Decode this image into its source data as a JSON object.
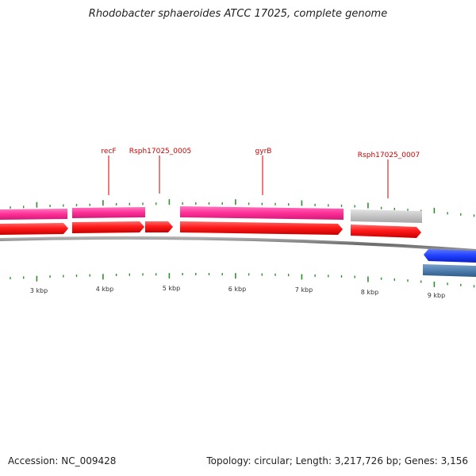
{
  "title": "Rhodobacter sphaeroides ATCC 17025, complete genome",
  "accession": "Accession: NC_009428",
  "summary": "Topology: circular; Length: 3,217,726 bp; Genes: 3,156",
  "colors": {
    "backbone": "#7a7a7a",
    "tick": "#2f8f2f",
    "gene_label": "#cc0000",
    "cds_forward": "#ff1a1a",
    "gene_pink": "#ff3399",
    "gene_grey": "#bdbdbd",
    "gene_blue_dark": "#1f3fff",
    "gene_blue_light": "#4f7fb0"
  },
  "kbp_labels": [
    "3 kbp",
    "4 kbp",
    "5 kbp",
    "6 kbp",
    "7 kbp",
    "8 kbp",
    "9 kbp"
  ],
  "gene_labels": [
    "recF",
    "Rsph17025_0005",
    "gyrB",
    "Rsph17025_0007"
  ]
}
